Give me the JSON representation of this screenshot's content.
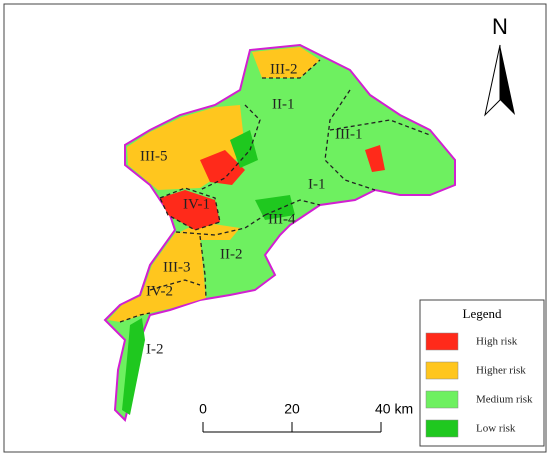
{
  "north_arrow": {
    "label": "N"
  },
  "regions": [
    {
      "label": "III-2"
    },
    {
      "label": "II-1"
    },
    {
      "label": "III-1"
    },
    {
      "label": "III-5"
    },
    {
      "label": "I-1"
    },
    {
      "label": "IV-1"
    },
    {
      "label": "III-4"
    },
    {
      "label": "II-2"
    },
    {
      "label": "III-3"
    },
    {
      "label": "IV-2"
    },
    {
      "label": "I-2"
    }
  ],
  "legend": {
    "title": "Legend",
    "items": [
      {
        "label": "High risk",
        "color": "#ff2a1a"
      },
      {
        "label": "Higher risk",
        "color": "#ffc61e"
      },
      {
        "label": "Medium risk",
        "color": "#6ef060"
      },
      {
        "label": "Low risk",
        "color": "#1fc81f"
      }
    ]
  },
  "scale_bar": {
    "labels": [
      "0",
      "20",
      "40 km"
    ]
  }
}
